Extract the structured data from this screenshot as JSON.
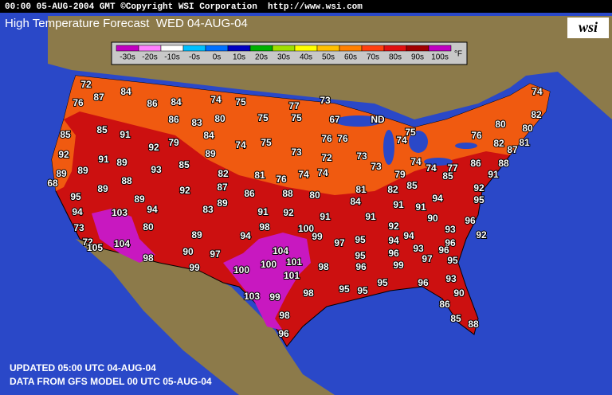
{
  "header": "00:00 05-AUG-2004 GMT ©Copyright WSI Corporation  http://www.wsi.com",
  "title": "High Temperature Forecast  WED 04-AUG-04",
  "logo": "wsi",
  "legend": {
    "items": [
      {
        "label": "-30s",
        "color": "#c000c0"
      },
      {
        "label": "-20s",
        "color": "#ff80ff"
      },
      {
        "label": "-10s",
        "color": "#ffffff"
      },
      {
        "label": "-0s",
        "color": "#00c0ff"
      },
      {
        "label": "0s",
        "color": "#0070ff"
      },
      {
        "label": "10s",
        "color": "#0000c0"
      },
      {
        "label": "20s",
        "color": "#00b000"
      },
      {
        "label": "30s",
        "color": "#a0e000"
      },
      {
        "label": "40s",
        "color": "#ffff00"
      },
      {
        "label": "50s",
        "color": "#ffc000"
      },
      {
        "label": "60s",
        "color": "#ff8000"
      },
      {
        "label": "70s",
        "color": "#ff4010"
      },
      {
        "label": "80s",
        "color": "#e01010"
      },
      {
        "label": "90s",
        "color": "#a00000"
      },
      {
        "label": "100s",
        "color": "#c000c0"
      }
    ],
    "unit": "°F"
  },
  "temps": [
    72,
    87,
    84,
    76,
    86,
    84,
    74,
    75,
    77,
    73,
    74,
    82,
    85,
    86,
    83,
    80,
    75,
    75,
    67,
    "ND",
    80,
    80,
    85,
    91,
    84,
    76,
    76,
    75,
    76,
    74,
    82,
    81,
    87,
    92,
    79,
    74,
    75,
    73,
    73,
    74,
    89,
    92,
    91,
    89,
    72,
    86,
    88,
    89,
    93,
    85,
    73,
    74,
    77,
    91,
    89,
    88,
    82,
    81,
    76,
    74,
    74,
    79,
    85,
    68,
    89,
    92,
    87,
    86,
    88,
    80,
    81,
    82,
    85,
    92,
    95,
    89,
    89,
    84,
    91,
    94,
    95,
    94,
    103,
    94,
    83,
    91,
    92,
    91,
    91,
    91,
    90,
    96,
    73,
    80,
    98,
    100,
    92,
    93,
    92,
    72,
    104,
    89,
    94,
    99,
    97,
    95,
    94,
    94,
    96,
    105,
    90,
    97,
    104,
    96,
    93,
    96,
    98,
    99,
    100,
    100,
    101,
    98,
    95,
    96,
    99,
    97,
    95,
    101,
    93,
    95,
    96,
    95,
    95,
    98,
    90,
    103,
    99,
    86,
    98,
    85,
    88,
    96
  ],
  "footer": [
    "UPDATED 05:00 UTC 04-AUG-04",
    "DATA FROM GFS MODEL 00 UTC 05-AUG-04"
  ]
}
